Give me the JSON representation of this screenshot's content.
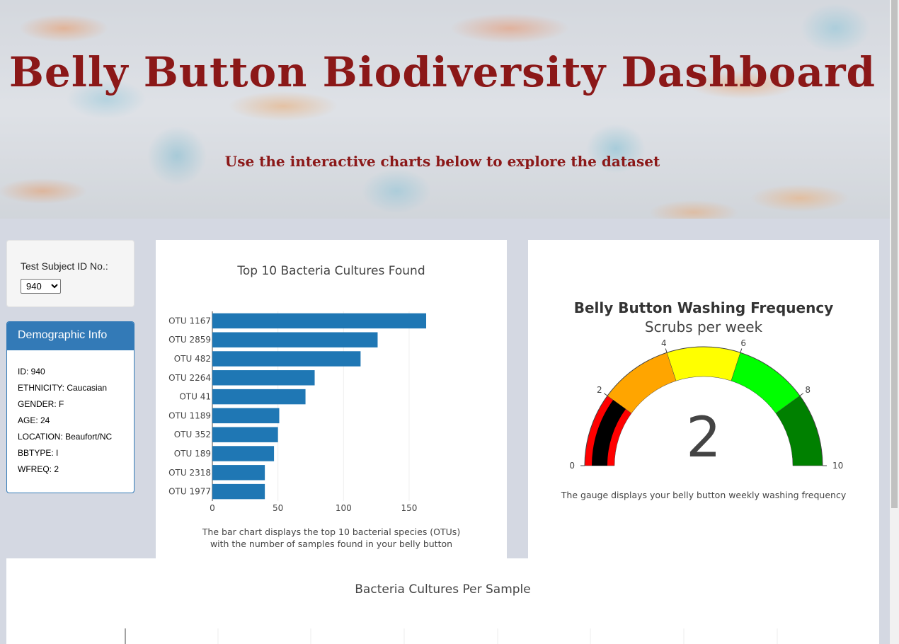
{
  "header": {
    "title": "Belly Button Biodiversity Dashboard",
    "subtitle": "Use the interactive charts below to explore the dataset"
  },
  "selector": {
    "label": "Test Subject ID No.:",
    "selected": "940"
  },
  "demographics": {
    "heading": "Demographic Info",
    "rows": [
      "ID: 940",
      "ETHNICITY: Caucasian",
      "GENDER: F",
      "AGE: 24",
      "LOCATION: Beaufort/NC",
      "BBTYPE: I",
      "WFREQ: 2"
    ]
  },
  "bar_chart": {
    "caption_line1": "The bar chart displays the top 10 bacterial species (OTUs)",
    "caption_line2": "with the number of samples found in your belly button"
  },
  "gauge_chart": {
    "caption": "The gauge displays your belly button weekly washing frequency"
  },
  "colors": {
    "bar": "#1f77b4",
    "panel_primary": "#337ab7",
    "title_red": "#8b1818",
    "gauge_steps": [
      "#ff0000",
      "#ffa500",
      "#ffff00",
      "#00ff00",
      "#008000"
    ],
    "gauge_bar": "#000000"
  },
  "chart_data": [
    {
      "type": "bar",
      "orientation": "horizontal",
      "title": "Top 10 Bacteria Cultures Found",
      "categories": [
        "OTU 1167",
        "OTU 2859",
        "OTU 482",
        "OTU 2264",
        "OTU 41",
        "OTU 1189",
        "OTU 352",
        "OTU 189",
        "OTU 2318",
        "OTU 1977"
      ],
      "values": [
        163,
        126,
        113,
        78,
        71,
        51,
        50,
        47,
        40,
        40
      ],
      "xticks": [
        0,
        50,
        100,
        150
      ],
      "xlim": [
        0,
        170
      ],
      "grid": true
    },
    {
      "type": "gauge",
      "title": "Belly Button Washing Frequency",
      "subtitle": "Scrubs per week",
      "value": 2,
      "range": [
        0,
        10
      ],
      "ticks": [
        0,
        2,
        4,
        6,
        8,
        10
      ],
      "steps": [
        [
          0,
          2
        ],
        [
          2,
          4
        ],
        [
          4,
          6
        ],
        [
          6,
          8
        ],
        [
          8,
          10
        ]
      ]
    },
    {
      "type": "scatter",
      "title": "Bacteria Cultures Per Sample"
    }
  ]
}
